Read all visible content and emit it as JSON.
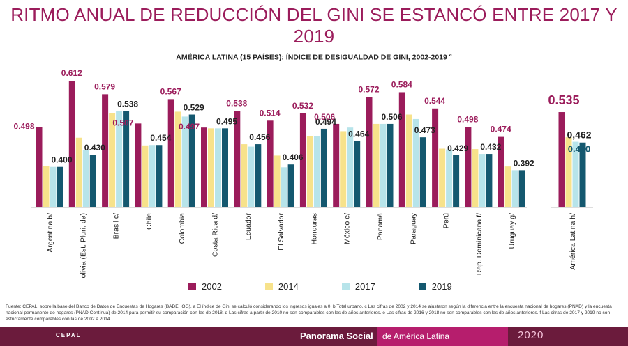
{
  "header": {
    "title": "RITMO ANUAL DE REDUCCIÓN DEL GINI SE ESTANCÓ ENTRE 2017 Y 2019",
    "subtitle": "AMÉRICA LATINA (15 PAÍSES): ÍNDICE DE DESIGUALDAD DE GINI, 2002-2019",
    "subtitle_sup": "a"
  },
  "chart_data": {
    "type": "bar",
    "title": "AMÉRICA LATINA (15 PAÍSES): ÍNDICE DE DESIGUALDAD DE GINI, 2002-2019",
    "categories": [
      "Argentina b/",
      "Bolivia (Est. Pluri. de)",
      "Brasil c/",
      "Chile",
      "Colombia",
      "Costa Rica d/",
      "Ecuador",
      "El Salvador",
      "Honduras",
      "México e/",
      "Panamá",
      "Paraguay",
      "Perú",
      "Rep. Dominicana f/",
      "Uruguay g/",
      "América Latina h/"
    ],
    "series": [
      {
        "name": "2002",
        "color": "#9b1c5b",
        "values": [
          0.498,
          0.612,
          0.579,
          0.507,
          0.567,
          0.497,
          0.538,
          0.514,
          0.532,
          0.506,
          0.572,
          0.584,
          0.544,
          0.498,
          0.474,
          0.535
        ]
      },
      {
        "name": "2014",
        "color": "#f7e28b",
        "values": [
          0.402,
          0.472,
          0.532,
          0.453,
          0.536,
          0.495,
          0.456,
          0.428,
          0.476,
          0.488,
          0.506,
          0.529,
          0.445,
          0.444,
          0.401,
          0.473
        ]
      },
      {
        "name": "2017",
        "color": "#b7e4ea",
        "values": [
          0.4,
          0.442,
          0.538,
          0.454,
          0.524,
          0.495,
          0.45,
          0.399,
          0.476,
          0.497,
          0.506,
          0.518,
          0.443,
          0.432,
          0.392,
          0.462
        ]
      },
      {
        "name": "2019",
        "color": "#14586f",
        "values": [
          0.4,
          0.43,
          0.538,
          0.454,
          0.529,
          0.495,
          0.456,
          0.406,
          0.494,
          0.464,
          0.506,
          0.473,
          0.429,
          0.432,
          0.392,
          0.46
        ]
      }
    ],
    "data_labels": [
      {
        "category": 0,
        "series": 0,
        "text": "0.498"
      },
      {
        "category": 0,
        "series": 3,
        "text": "0.400"
      },
      {
        "category": 1,
        "series": 0,
        "text": "0.612"
      },
      {
        "category": 1,
        "series": 3,
        "text": "0.430"
      },
      {
        "category": 2,
        "series": 0,
        "text": "0.579"
      },
      {
        "category": 2,
        "series": 3,
        "text": "0.538"
      },
      {
        "category": 3,
        "series": 0,
        "text": "0.507"
      },
      {
        "category": 3,
        "series": 3,
        "text": "0.454"
      },
      {
        "category": 4,
        "series": 0,
        "text": "0.567"
      },
      {
        "category": 4,
        "series": 3,
        "text": "0.529"
      },
      {
        "category": 5,
        "series": 0,
        "text": "0.497"
      },
      {
        "category": 5,
        "series": 3,
        "text": "0.495"
      },
      {
        "category": 6,
        "series": 0,
        "text": "0.538"
      },
      {
        "category": 6,
        "series": 3,
        "text": "0.456"
      },
      {
        "category": 7,
        "series": 0,
        "text": "0.514"
      },
      {
        "category": 7,
        "series": 3,
        "text": "0.406"
      },
      {
        "category": 8,
        "series": 0,
        "text": "0.532"
      },
      {
        "category": 8,
        "series": 3,
        "text": "0.494"
      },
      {
        "category": 9,
        "series": 0,
        "text": "0.506"
      },
      {
        "category": 9,
        "series": 3,
        "text": "0.464"
      },
      {
        "category": 10,
        "series": 0,
        "text": "0.572"
      },
      {
        "category": 10,
        "series": 3,
        "text": "0.506"
      },
      {
        "category": 11,
        "series": 0,
        "text": "0.584"
      },
      {
        "category": 11,
        "series": 3,
        "text": "0.473"
      },
      {
        "category": 12,
        "series": 0,
        "text": "0.544"
      },
      {
        "category": 12,
        "series": 3,
        "text": "0.429"
      },
      {
        "category": 13,
        "series": 0,
        "text": "0.498"
      },
      {
        "category": 13,
        "series": 3,
        "text": "0.432"
      },
      {
        "category": 14,
        "series": 0,
        "text": "0.474"
      },
      {
        "category": 14,
        "series": 3,
        "text": "0.392"
      },
      {
        "category": 15,
        "series": 0,
        "text": "0.535"
      },
      {
        "category": 15,
        "series": 2,
        "text": "0,462"
      },
      {
        "category": 15,
        "series": 3,
        "text": "0.460"
      }
    ],
    "ylim": [
      0.3,
      0.65
    ],
    "legend": "bottom",
    "grid": false
  },
  "footnote": "Fuente: CEPAL, sobre la base del Banco de Datos de Encuestas de Hogares (BADEHOG). a El índice de Gini se calculó considerando los ingresos iguales a 0. b Total urbano. c Las cifras de 2002 y 2014 se ajustaron según la diferencia entre la encuesta nacional de hogares (PNAD) y la encuesta nacional permanente de hogares (PNAD Contínua) de 2014 para permitir su comparación con las de 2018. d Las cifras a partir de 2010 no son comparables con las de años anteriores. e Las cifras de 2016 y 2018 no son comparables con las de años anteriores. f Las cifras de 2017 y 2019 no son estrictamente comparables con las de 2002 a 2014.",
  "footer": {
    "logo": "CEPAL",
    "brand": "Panorama Social",
    "sub": "de América Latina",
    "year": "2020"
  }
}
